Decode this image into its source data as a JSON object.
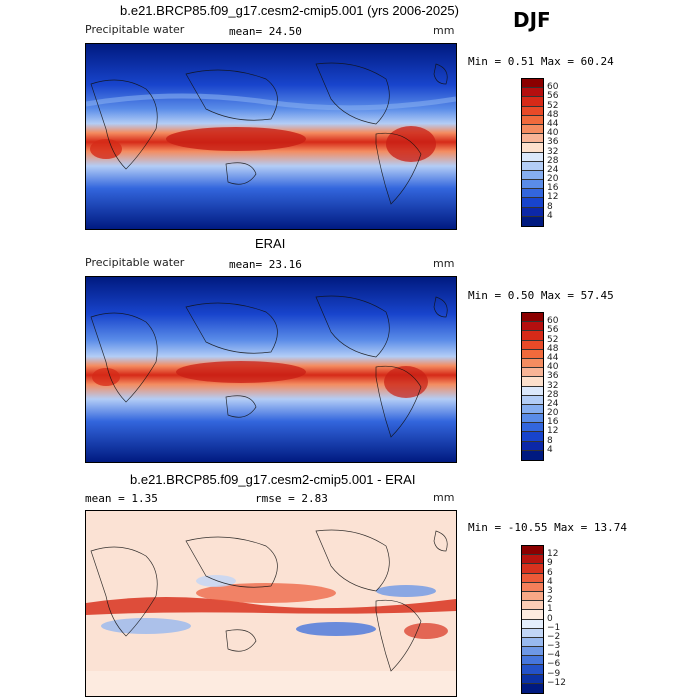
{
  "season": "DJF",
  "panels": [
    {
      "title": "b.e21.BRCP85.f09_g17.cesm2-cmip5.001 (yrs 2006-2025)",
      "variable": "Precipitable water",
      "stat_label": "mean=",
      "stat_value": "24.50",
      "units": "mm",
      "min_label": "Min =",
      "min_value": "0.51",
      "max_label": "Max =",
      "max_value": "60.24",
      "colorbar_levels": [
        "60",
        "56",
        "52",
        "48",
        "44",
        "40",
        "36",
        "32",
        "28",
        "24",
        "20",
        "16",
        "12",
        "8",
        "4"
      ],
      "colorbar_colors": [
        "#8b0000",
        "#b40f0f",
        "#d62a18",
        "#e84a28",
        "#f06a3c",
        "#f48c60",
        "#f8b496",
        "#fde0cc",
        "#dbe8fb",
        "#b3cdf6",
        "#86aef0",
        "#5a8ce8",
        "#3366dd",
        "#1844cc",
        "#0c28a8",
        "#001a80"
      ]
    },
    {
      "title": "ERAI",
      "variable": "Precipitable water",
      "stat_label": "mean=",
      "stat_value": "23.16",
      "units": "mm",
      "min_label": "Min =",
      "min_value": "0.50",
      "max_label": "Max =",
      "max_value": "57.45",
      "colorbar_levels": [
        "60",
        "56",
        "52",
        "48",
        "44",
        "40",
        "36",
        "32",
        "28",
        "24",
        "20",
        "16",
        "12",
        "8",
        "4"
      ],
      "colorbar_colors": [
        "#8b0000",
        "#b40f0f",
        "#d62a18",
        "#e84a28",
        "#f06a3c",
        "#f48c60",
        "#f8b496",
        "#fde0cc",
        "#dbe8fb",
        "#b3cdf6",
        "#86aef0",
        "#5a8ce8",
        "#3366dd",
        "#1844cc",
        "#0c28a8",
        "#001a80"
      ]
    },
    {
      "title": "b.e21.BRCP85.f09_g17.cesm2-cmip5.001 - ERAI",
      "mean_label": "mean =",
      "mean_value": "1.35",
      "rmse_label": "rmse =",
      "rmse_value": "2.83",
      "units": "mm",
      "min_label": "Min =",
      "min_value": "-10.55",
      "max_label": "Max =",
      "max_value": "13.74",
      "colorbar_levels": [
        "12",
        "9",
        "6",
        "4",
        "3",
        "2",
        "1",
        "0",
        "−1",
        "−2",
        "−3",
        "−4",
        "−6",
        "−9",
        "−12"
      ],
      "colorbar_colors": [
        "#8b0000",
        "#b8140e",
        "#d8321e",
        "#ec5a38",
        "#f47f5a",
        "#f8a886",
        "#fbcdb6",
        "#fdebe0",
        "#e4eefc",
        "#c2d6f6",
        "#98b9ef",
        "#6e98e6",
        "#4676dc",
        "#2452c8",
        "#0c32a4",
        "#001a80"
      ]
    }
  ]
}
